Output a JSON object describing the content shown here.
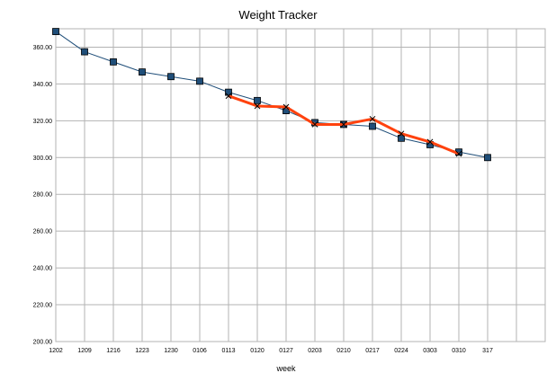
{
  "chart_data": {
    "type": "line",
    "title": "Weight Tracker",
    "xlabel": "week",
    "ylabel": "",
    "categories": [
      "1202",
      "1209",
      "1216",
      "1223",
      "1230",
      "0106",
      "0113",
      "0120",
      "0127",
      "0203",
      "0210",
      "0217",
      "0224",
      "0303",
      "0310",
      "317",
      "",
      ""
    ],
    "ylim": [
      200,
      370
    ],
    "yticks": [
      200,
      220,
      240,
      260,
      280,
      300,
      320,
      340,
      360
    ],
    "ytick_labels": [
      "200.00",
      "220.00",
      "240.00",
      "260.00",
      "280.00",
      "300.00",
      "320.00",
      "340.00",
      "360.00"
    ],
    "grid": true,
    "legend": "none",
    "series": [
      {
        "color": "#1f4e79",
        "marker": "square",
        "values": [
          368.5,
          357.5,
          352,
          346.5,
          344,
          341.5,
          335.5,
          331,
          325.5,
          319,
          318,
          317,
          310.5,
          307,
          303,
          300,
          null,
          null
        ]
      },
      {
        "color": "#ff420e",
        "marker": "x",
        "values": [
          null,
          null,
          null,
          null,
          null,
          null,
          333.5,
          328,
          327.5,
          318,
          318,
          321,
          313,
          308.5,
          302,
          null,
          null,
          null
        ]
      }
    ]
  }
}
